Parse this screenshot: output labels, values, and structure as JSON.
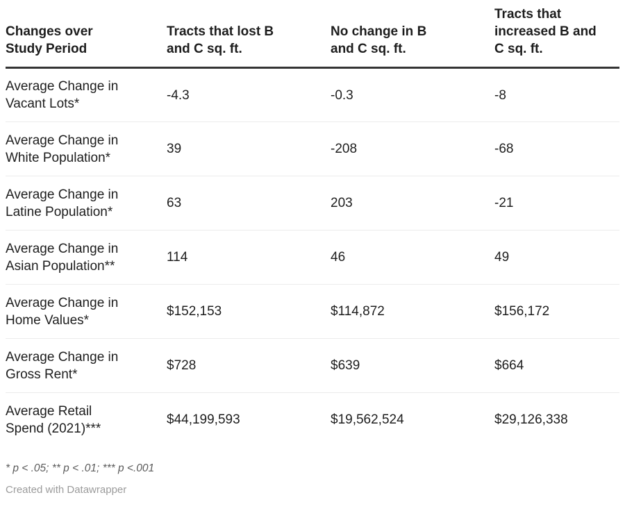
{
  "chart_data": {
    "type": "table",
    "columns": [
      {
        "label": "Changes over\nStudy Period"
      },
      {
        "label": "Tracts that lost B\nand C sq. ft."
      },
      {
        "label": "No change in B\nand C sq. ft."
      },
      {
        "label": "Tracts that\nincreased B and\nC sq. ft."
      }
    ],
    "rows": [
      {
        "label": "Average Change in\nVacant Lots*",
        "values": [
          "-4.3",
          "-0.3",
          "-8"
        ]
      },
      {
        "label": "Average Change in\nWhite Population*",
        "values": [
          "39",
          "-208",
          "-68"
        ]
      },
      {
        "label": "Average Change in\nLatine Population*",
        "values": [
          "63",
          "203",
          "-21"
        ]
      },
      {
        "label": "Average Change in\nAsian Population**",
        "values": [
          "114",
          "46",
          "49"
        ]
      },
      {
        "label": "Average Change in\nHome Values*",
        "values": [
          "$152,153",
          "$114,872",
          "$156,172"
        ]
      },
      {
        "label": "Average Change in\nGross Rent*",
        "values": [
          "$728",
          "$639",
          "$664"
        ]
      },
      {
        "label": "Average Retail\nSpend (2021)***",
        "values": [
          "$44,199,593",
          "$19,562,524",
          "$29,126,338"
        ]
      }
    ],
    "footnote": "* p < .05; ** p < .01; *** p <.001",
    "credit": "Created with Datawrapper",
    "layout_hints": {
      "header_rule_color": "#333333",
      "row_divider_color": "#ebebeb",
      "text_color": "#1d1d1d",
      "footnote_color": "#5b5b5b",
      "credit_color": "#9b9b9b"
    }
  }
}
